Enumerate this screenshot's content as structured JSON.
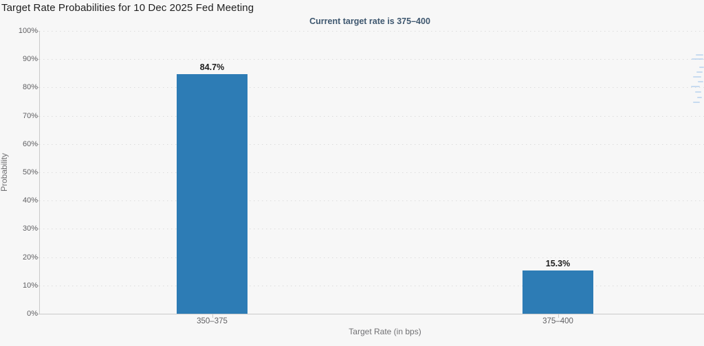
{
  "page": {
    "background_color": "#f7f7f7"
  },
  "chart_data": {
    "type": "bar",
    "title": "Target Rate Probabilities for 10 Dec 2025 Fed Meeting",
    "subtitle": "Current target rate is 375–400",
    "categories": [
      "350–375",
      "375–400"
    ],
    "values": [
      84.7,
      15.3
    ],
    "data_labels": [
      "84.7%",
      "15.3%"
    ],
    "xlabel": "Target Rate (in bps)",
    "ylabel": "Probability",
    "ylim": [
      0,
      100
    ],
    "y_tick_step": 10,
    "y_tick_labels": [
      "0%",
      "10%",
      "20%",
      "30%",
      "40%",
      "50%",
      "60%",
      "70%",
      "80%",
      "90%",
      "100%"
    ],
    "grid": "dotted horizontal gridlines at each 10%",
    "legend": "none",
    "bar_color": "#2d7cb5",
    "accent_colors": {
      "subtitle_text": "#3e576f",
      "axis_label_text": "#606063",
      "axis_line": "#c9c9c9"
    }
  }
}
